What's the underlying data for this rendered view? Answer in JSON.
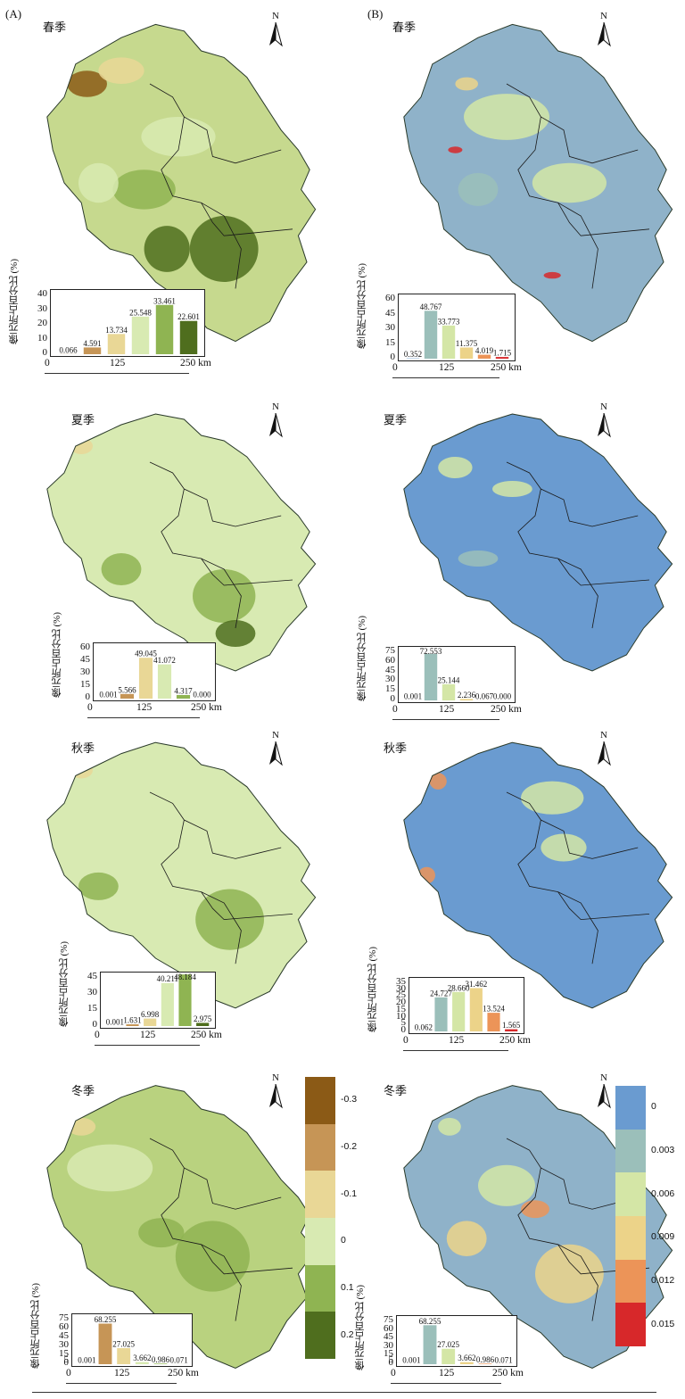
{
  "panels": {
    "A": {
      "tag": "(A)"
    },
    "B": {
      "tag": "(B)"
    }
  },
  "north_label": "N",
  "ylabel": "像元所占百分比 (%)",
  "scale": {
    "t0": "0",
    "t1": "125",
    "t2": "250 km"
  },
  "maps": [
    {
      "id": "A-spring",
      "season": "春季",
      "panel": "A",
      "palette": "slope"
    },
    {
      "id": "B-spring",
      "season": "春季",
      "panel": "B",
      "palette": "variability"
    },
    {
      "id": "A-summer",
      "season": "夏季",
      "panel": "A",
      "palette": "slope"
    },
    {
      "id": "B-summer",
      "season": "夏季",
      "panel": "B",
      "palette": "variability"
    },
    {
      "id": "A-autumn",
      "season": "秋季",
      "panel": "A",
      "palette": "slope"
    },
    {
      "id": "B-autumn",
      "season": "秋季",
      "panel": "B",
      "palette": "variability"
    },
    {
      "id": "A-winter",
      "season": "冬季",
      "panel": "A",
      "palette": "slope"
    },
    {
      "id": "B-winter",
      "season": "冬季",
      "panel": "B",
      "palette": "variability"
    }
  ],
  "legend_A": {
    "labels": [
      "-0.3",
      "-0.2",
      "-0.1",
      "0",
      "0.1",
      "0.2"
    ],
    "colors": [
      "#8b5a16",
      "#c69556",
      "#e9d796",
      "#d8eab2",
      "#8fb452",
      "#4f6e1e"
    ]
  },
  "legend_B": {
    "labels": [
      "0",
      "0.003",
      "0.006",
      "0.009",
      "0.012",
      "0.015"
    ],
    "colors": [
      "#6a9bd0",
      "#9bbfba",
      "#d4e6a6",
      "#ecd389",
      "#ec9458",
      "#d7282a"
    ]
  },
  "chart_data": [
    {
      "type": "bar",
      "map": "A-spring",
      "ylim": [
        0,
        40
      ],
      "yticks": [
        0,
        10,
        20,
        30,
        40
      ],
      "values": [
        0.066,
        4.591,
        13.734,
        25.548,
        33.461,
        22.601
      ],
      "labels": [
        "0.066",
        "4.591",
        "13.734",
        "25.548",
        "33.461",
        "22.601"
      ],
      "colors": [
        "#8b5a16",
        "#c69556",
        "#e9d796",
        "#d8eab2",
        "#8fb452",
        "#4f6e1e"
      ]
    },
    {
      "type": "bar",
      "map": "B-spring",
      "ylim": [
        0,
        60
      ],
      "yticks": [
        0,
        15,
        30,
        45,
        60
      ],
      "values": [
        0.352,
        48.767,
        33.773,
        11.375,
        4.019,
        1.715
      ],
      "labels": [
        "0.352",
        "48.767",
        "33.773",
        "11.375",
        "4.019",
        "1.715"
      ],
      "colors": [
        "#6a9bd0",
        "#9bbfba",
        "#d4e6a6",
        "#ecd389",
        "#ec9458",
        "#d7282a"
      ]
    },
    {
      "type": "bar",
      "map": "A-summer",
      "ylim": [
        0,
        60
      ],
      "yticks": [
        0,
        15,
        30,
        45,
        60
      ],
      "values": [
        0.001,
        5.566,
        49.045,
        41.072,
        4.317,
        0.0
      ],
      "labels": [
        "0.001",
        "5.566",
        "49.045",
        "41.072",
        "4.317",
        "0.000"
      ],
      "colors": [
        "#c69556",
        "#c69556",
        "#e9d796",
        "#d8eab2",
        "#8fb452",
        "#4f6e1e"
      ]
    },
    {
      "type": "bar",
      "map": "B-summer",
      "ylim": [
        0,
        75
      ],
      "yticks": [
        0,
        15,
        30,
        45,
        60,
        75
      ],
      "values": [
        0.001,
        72.553,
        25.144,
        2.236,
        0.067,
        0.0
      ],
      "labels": [
        "0.001",
        "72.553",
        "25.144",
        "2.236",
        "0.067",
        "0.000"
      ],
      "colors": [
        "#6a9bd0",
        "#9bbfba",
        "#d4e6a6",
        "#ecd389",
        "#ec9458",
        "#d7282a"
      ]
    },
    {
      "type": "bar",
      "map": "A-autumn",
      "ylim": [
        0,
        45
      ],
      "yticks": [
        0,
        15,
        30,
        45
      ],
      "values": [
        0.001,
        1.631,
        6.998,
        40.211,
        48.184,
        2.975
      ],
      "labels": [
        "0.001",
        "1.631",
        "6.998",
        "40.211",
        "48.184",
        "2.975"
      ],
      "colors": [
        "#8b5a16",
        "#c69556",
        "#e9d796",
        "#d8eab2",
        "#8fb452",
        "#4f6e1e"
      ]
    },
    {
      "type": "bar",
      "map": "B-autumn",
      "ylim": [
        0,
        35
      ],
      "yticks": [
        0,
        5,
        10,
        15,
        20,
        25,
        30,
        35
      ],
      "values": [
        0.062,
        24.727,
        28.66,
        31.462,
        13.524,
        1.565
      ],
      "labels": [
        "0.062",
        "24.727",
        "28.660",
        "31.462",
        "13.524",
        "1.565"
      ],
      "colors": [
        "#6a9bd0",
        "#9bbfba",
        "#d4e6a6",
        "#ecd389",
        "#ec9458",
        "#d7282a"
      ]
    },
    {
      "type": "bar",
      "map": "A-winter",
      "ylim": [
        0,
        75
      ],
      "yticks": [
        0,
        5,
        15,
        30,
        45,
        60,
        75
      ],
      "values": [
        0.001,
        68.255,
        27.025,
        3.662,
        0.986,
        0.071
      ],
      "labels": [
        "0.001",
        "68.255",
        "27.025",
        "3.662",
        "0.986",
        "0.071"
      ],
      "colors": [
        "#8b5a16",
        "#c69556",
        "#e9d796",
        "#d8eab2",
        "#8fb452",
        "#4f6e1e"
      ]
    },
    {
      "type": "bar",
      "map": "B-winter",
      "ylim": [
        0,
        75
      ],
      "yticks": [
        0,
        5,
        15,
        30,
        45,
        60,
        75
      ],
      "values": [
        0.001,
        68.255,
        27.025,
        3.662,
        0.986,
        0.071
      ],
      "labels": [
        "0.001",
        "68.255",
        "27.025",
        "3.662",
        "0.986",
        "0.071"
      ],
      "colors": [
        "#6a9bd0",
        "#9bbfba",
        "#d4e6a6",
        "#ecd389",
        "#ec9458",
        "#d7282a"
      ]
    }
  ]
}
